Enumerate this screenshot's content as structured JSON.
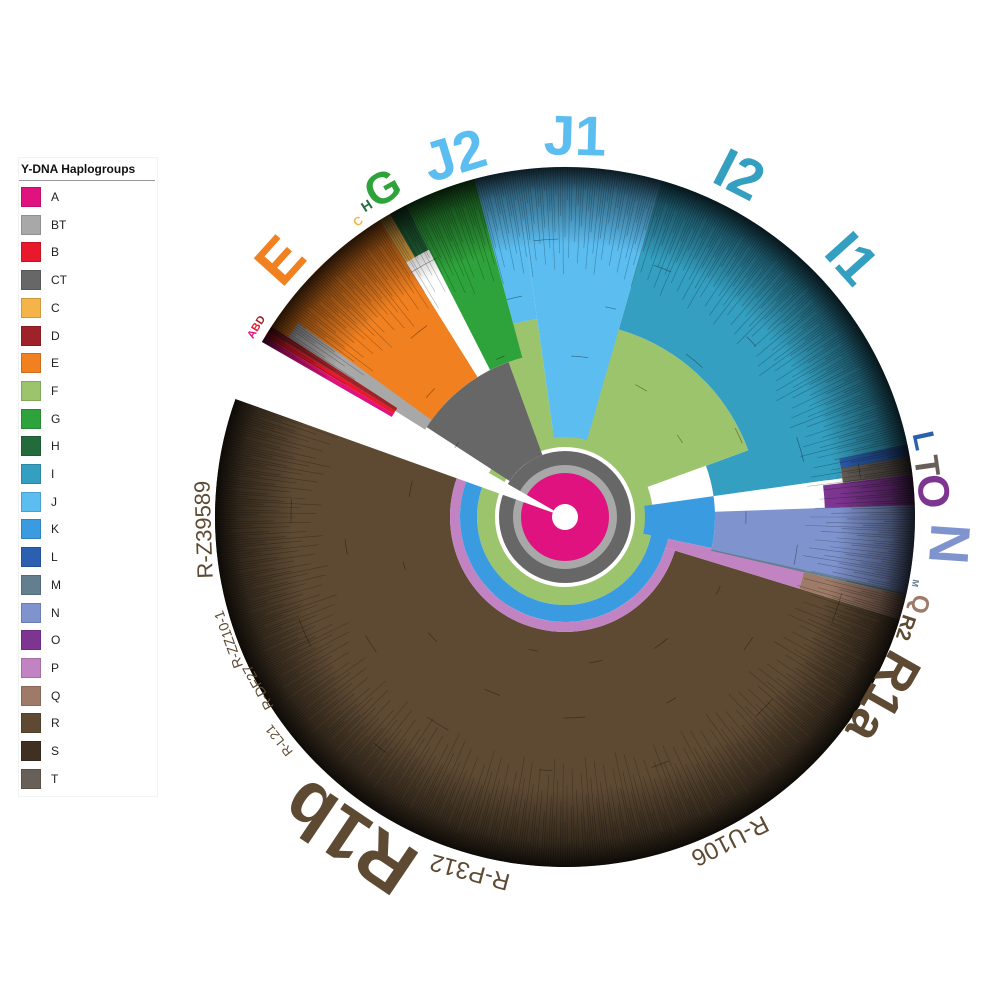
{
  "legend": {
    "title": "Y-DNA Haplogroups",
    "items": [
      {
        "label": "A",
        "color": "#e0127f"
      },
      {
        "label": "BT",
        "color": "#a8a8a8"
      },
      {
        "label": "B",
        "color": "#e8192c"
      },
      {
        "label": "CT",
        "color": "#676767"
      },
      {
        "label": "C",
        "color": "#f5b44a"
      },
      {
        "label": "D",
        "color": "#9e2328"
      },
      {
        "label": "E",
        "color": "#f08020"
      },
      {
        "label": "F",
        "color": "#9cc46c"
      },
      {
        "label": "G",
        "color": "#2fa33b"
      },
      {
        "label": "H",
        "color": "#246b3c"
      },
      {
        "label": "I",
        "color": "#349fc0"
      },
      {
        "label": "J",
        "color": "#5bbdf0"
      },
      {
        "label": "K",
        "color": "#3a9be0"
      },
      {
        "label": "L",
        "color": "#2b5fb0"
      },
      {
        "label": "M",
        "color": "#637f8f"
      },
      {
        "label": "N",
        "color": "#7f94cf"
      },
      {
        "label": "O",
        "color": "#7e3592"
      },
      {
        "label": "P",
        "color": "#c283c3"
      },
      {
        "label": "Q",
        "color": "#9e7a68"
      },
      {
        "label": "R",
        "color": "#5e4a33"
      },
      {
        "label": "S",
        "color": "#3f3023"
      },
      {
        "label": "T",
        "color": "#686058"
      }
    ]
  },
  "clade_labels": [
    "A",
    "B",
    "D",
    "E",
    "C",
    "H",
    "G",
    "J2",
    "J1",
    "I2",
    "I1",
    "L",
    "T",
    "O",
    "N",
    "M",
    "Q",
    "R2",
    "R1a",
    "R1b"
  ],
  "subclade_labels": [
    "R-U106",
    "R-P312",
    "R-L21",
    "R-DF27",
    "R-ZZ10-1",
    "R-Z39589"
  ]
}
